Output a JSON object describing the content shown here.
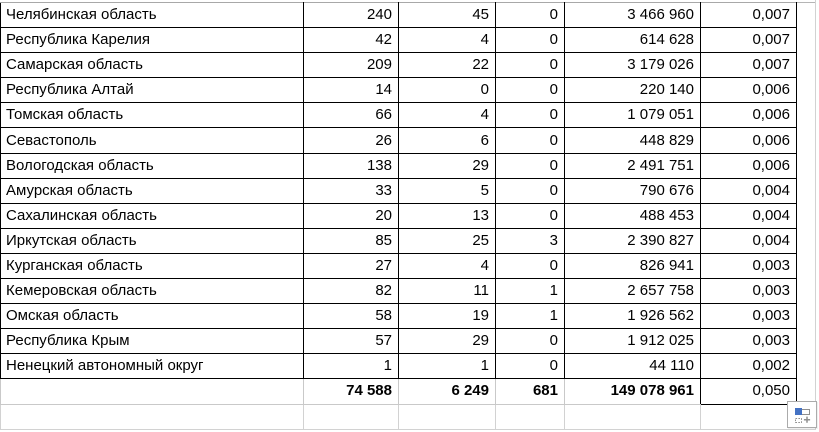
{
  "table": {
    "rows": [
      {
        "cells": [
          "Челябинская область",
          "240",
          "45",
          "0",
          "3 466 960",
          "0,007"
        ]
      },
      {
        "cells": [
          "Республика Карелия",
          "42",
          "4",
          "0",
          "614 628",
          "0,007"
        ]
      },
      {
        "cells": [
          "Самарская область",
          "209",
          "22",
          "0",
          "3 179 026",
          "0,007"
        ]
      },
      {
        "cells": [
          "Республика Алтай",
          "14",
          "0",
          "0",
          "220 140",
          "0,006"
        ]
      },
      {
        "cells": [
          "Томская область",
          "66",
          "4",
          "0",
          "1 079 051",
          "0,006"
        ]
      },
      {
        "cells": [
          "Севастополь",
          "26",
          "6",
          "0",
          "448 829",
          "0,006"
        ]
      },
      {
        "cells": [
          "Вологодская область",
          "138",
          "29",
          "0",
          "2 491 751",
          "0,006"
        ]
      },
      {
        "cells": [
          "Амурская область",
          "33",
          "5",
          "0",
          "790 676",
          "0,004"
        ]
      },
      {
        "cells": [
          "Сахалинская область",
          "20",
          "13",
          "0",
          "488 453",
          "0,004"
        ]
      },
      {
        "cells": [
          "Иркутская область",
          "85",
          "25",
          "3",
          "2 390 827",
          "0,004"
        ]
      },
      {
        "cells": [
          "Курганская область",
          "27",
          "4",
          "0",
          "826 941",
          "0,003"
        ]
      },
      {
        "cells": [
          "Кемеровская область",
          "82",
          "11",
          "1",
          "2 657 758",
          "0,003"
        ]
      },
      {
        "cells": [
          "Омская область",
          "58",
          "19",
          "1",
          "1 926 562",
          "0,003"
        ]
      },
      {
        "cells": [
          "Республика Крым",
          "57",
          "29",
          "0",
          "1 912 025",
          "0,003"
        ]
      },
      {
        "cells": [
          "Ненецкий автономный округ",
          "1",
          "1",
          "0",
          "44 110",
          "0,002"
        ]
      }
    ],
    "total_row": {
      "cells": [
        "",
        "74 588",
        "6 249",
        "681",
        "149 078 961",
        "0,050"
      ]
    }
  },
  "smart_tag": {
    "icon": "insert-options-icon"
  },
  "colors": {
    "cell_border": "#000000",
    "gridline": "#d2d2d2",
    "top_edge_line": "#a8a8a8",
    "accent_blue": "#4472c4",
    "background": "#ffffff",
    "text": "#000000"
  }
}
